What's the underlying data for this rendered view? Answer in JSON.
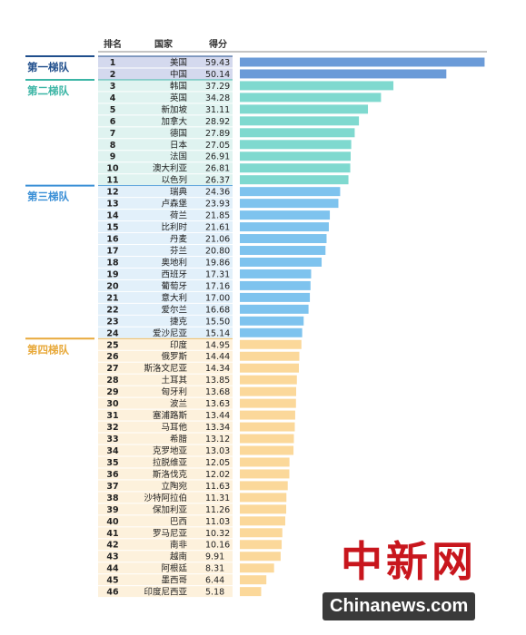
{
  "chart_data": {
    "type": "bar",
    "orientation": "horizontal",
    "columns": {
      "rank": "排名",
      "country": "国家",
      "score": "得分"
    },
    "tiers": [
      {
        "name": "第一梯队",
        "from": 1,
        "to": 2,
        "color": "#1f4e8c",
        "bar_color": "#6b9bd8",
        "row_color": "#d4d9ee"
      },
      {
        "name": "第二梯队",
        "from": 3,
        "to": 11,
        "color": "#3bb5a5",
        "bar_color": "#7fd9cf",
        "row_color": "#dff3f0"
      },
      {
        "name": "第三梯队",
        "from": 12,
        "to": 24,
        "color": "#3a8fd6",
        "bar_color": "#7ec3ee",
        "row_color": "#e2f0fa"
      },
      {
        "name": "第四梯队",
        "from": 25,
        "to": 46,
        "color": "#e8a93a",
        "bar_color": "#fbd89a",
        "row_color": "#fdf1dc"
      }
    ],
    "rows": [
      {
        "rank": 1,
        "country": "美国",
        "score": 59.43
      },
      {
        "rank": 2,
        "country": "中国",
        "score": 50.14
      },
      {
        "rank": 3,
        "country": "韩国",
        "score": 37.29
      },
      {
        "rank": 4,
        "country": "英国",
        "score": 34.28
      },
      {
        "rank": 5,
        "country": "新加坡",
        "score": 31.11
      },
      {
        "rank": 6,
        "country": "加拿大",
        "score": 28.92
      },
      {
        "rank": 7,
        "country": "德国",
        "score": 27.89
      },
      {
        "rank": 8,
        "country": "日本",
        "score": 27.05
      },
      {
        "rank": 9,
        "country": "法国",
        "score": 26.91
      },
      {
        "rank": 10,
        "country": "澳大利亚",
        "score": 26.81
      },
      {
        "rank": 11,
        "country": "以色列",
        "score": 26.37
      },
      {
        "rank": 12,
        "country": "瑞典",
        "score": 24.36
      },
      {
        "rank": 13,
        "country": "卢森堡",
        "score": 23.93
      },
      {
        "rank": 14,
        "country": "荷兰",
        "score": 21.85
      },
      {
        "rank": 15,
        "country": "比利时",
        "score": 21.61
      },
      {
        "rank": 16,
        "country": "丹麦",
        "score": 21.06
      },
      {
        "rank": 17,
        "country": "芬兰",
        "score": 20.8
      },
      {
        "rank": 18,
        "country": "奥地利",
        "score": 19.86
      },
      {
        "rank": 19,
        "country": "西班牙",
        "score": 17.31
      },
      {
        "rank": 20,
        "country": "葡萄牙",
        "score": 17.16
      },
      {
        "rank": 21,
        "country": "意大利",
        "score": 17.0
      },
      {
        "rank": 22,
        "country": "爱尔兰",
        "score": 16.68
      },
      {
        "rank": 23,
        "country": "捷克",
        "score": 15.5
      },
      {
        "rank": 24,
        "country": "爱沙尼亚",
        "score": 15.14
      },
      {
        "rank": 25,
        "country": "印度",
        "score": 14.95
      },
      {
        "rank": 26,
        "country": "俄罗斯",
        "score": 14.44
      },
      {
        "rank": 27,
        "country": "斯洛文尼亚",
        "score": 14.34
      },
      {
        "rank": 28,
        "country": "土耳其",
        "score": 13.85
      },
      {
        "rank": 29,
        "country": "匈牙利",
        "score": 13.68
      },
      {
        "rank": 30,
        "country": "波兰",
        "score": 13.63
      },
      {
        "rank": 31,
        "country": "塞浦路斯",
        "score": 13.44
      },
      {
        "rank": 32,
        "country": "马耳他",
        "score": 13.34
      },
      {
        "rank": 33,
        "country": "希腊",
        "score": 13.12
      },
      {
        "rank": 34,
        "country": "克罗地亚",
        "score": 13.03
      },
      {
        "rank": 35,
        "country": "拉脱维亚",
        "score": 12.05
      },
      {
        "rank": 36,
        "country": "斯洛伐克",
        "score": 12.02
      },
      {
        "rank": 37,
        "country": "立陶宛",
        "score": 11.63
      },
      {
        "rank": 38,
        "country": "沙特阿拉伯",
        "score": 11.31
      },
      {
        "rank": 39,
        "country": "保加利亚",
        "score": 11.26
      },
      {
        "rank": 40,
        "country": "巴西",
        "score": 11.03
      },
      {
        "rank": 41,
        "country": "罗马尼亚",
        "score": 10.32
      },
      {
        "rank": 42,
        "country": "南非",
        "score": 10.16
      },
      {
        "rank": 43,
        "country": "越南",
        "score": 9.91
      },
      {
        "rank": 44,
        "country": "阿根廷",
        "score": 8.31
      },
      {
        "rank": 45,
        "country": "墨西哥",
        "score": 6.44
      },
      {
        "rank": 46,
        "country": "印度尼西亚",
        "score": 5.18
      }
    ],
    "xlim": [
      0,
      60
    ],
    "grid": false,
    "legend": "none"
  },
  "watermark": {
    "cn": "中新网",
    "en": "Chinanews.com"
  }
}
